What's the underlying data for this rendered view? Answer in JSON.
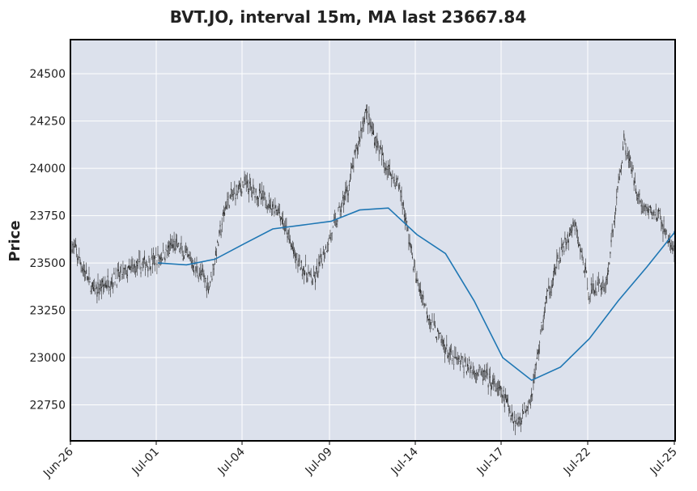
{
  "chart_data": {
    "type": "candlestick",
    "title": "BVT.JO, interval 15m, MA last 23667.84",
    "xlabel": "",
    "ylabel": "Price",
    "ylim": [
      22560,
      24680
    ],
    "y_ticks": [
      22750,
      23000,
      23250,
      23500,
      23750,
      24000,
      24250,
      24500
    ],
    "x_ticks": [
      "Jun-26",
      "Jul-01",
      "Jul-04",
      "Jul-09",
      "Jul-14",
      "Jul-17",
      "Jul-22",
      "Jul-25"
    ],
    "grid": true,
    "background": "#dce1ec",
    "candle_color": "#2b2b2b",
    "ma_color": "#1f77b4",
    "ma_last": 23667.84,
    "price_path": [
      [
        "Jun-26",
        23600
      ],
      [
        "Jun-26",
        23350
      ],
      [
        "Jun-26",
        23420
      ],
      [
        "Jun-26",
        23480
      ],
      [
        "Jul-01",
        23520
      ],
      [
        "Jul-01",
        23600
      ],
      [
        "Jul-01",
        23500
      ],
      [
        "Jul-01",
        23380
      ],
      [
        "Jul-01",
        23820
      ],
      [
        "Jul-04",
        23920
      ],
      [
        "Jul-04",
        23850
      ],
      [
        "Jul-04",
        23780
      ],
      [
        "Jul-04",
        23520
      ],
      [
        "Jul-04",
        23400
      ],
      [
        "Jul-09",
        23650
      ],
      [
        "Jul-09",
        23900
      ],
      [
        "Jul-09",
        24300
      ],
      [
        "Jul-09",
        24050
      ],
      [
        "Jul-09",
        23900
      ],
      [
        "Jul-14",
        23400
      ],
      [
        "Jul-14",
        23150
      ],
      [
        "Jul-14",
        23000
      ],
      [
        "Jul-14",
        22950
      ],
      [
        "Jul-14",
        22900
      ],
      [
        "Jul-17",
        22800
      ],
      [
        "Jul-17",
        22650
      ],
      [
        "Jul-17",
        22800
      ],
      [
        "Jul-17",
        23300
      ],
      [
        "Jul-17",
        23550
      ],
      [
        "Jul-17",
        23700
      ],
      [
        "Jul-22",
        23350
      ],
      [
        "Jul-22",
        23400
      ],
      [
        "Jul-22",
        24150
      ],
      [
        "Jul-22",
        23800
      ],
      [
        "Jul-22",
        23750
      ],
      [
        "Jul-25",
        23550
      ],
      [
        "Jul-25",
        23350
      ]
    ],
    "moving_average": [
      [
        "Jul-01",
        23500
      ],
      [
        "Jul-01",
        23490
      ],
      [
        "Jul-01",
        23520
      ],
      [
        "Jul-04",
        23600
      ],
      [
        "Jul-04",
        23680
      ],
      [
        "Jul-04",
        23700
      ],
      [
        "Jul-09",
        23720
      ],
      [
        "Jul-09",
        23780
      ],
      [
        "Jul-09",
        23790
      ],
      [
        "Jul-14",
        23650
      ],
      [
        "Jul-14",
        23550
      ],
      [
        "Jul-14",
        23300
      ],
      [
        "Jul-17",
        23000
      ],
      [
        "Jul-17",
        22880
      ],
      [
        "Jul-17",
        22950
      ],
      [
        "Jul-22",
        23100
      ],
      [
        "Jul-22",
        23300
      ],
      [
        "Jul-22",
        23480
      ],
      [
        "Jul-25",
        23660
      ],
      [
        "Jul-25",
        23650
      ],
      [
        "Jul-25",
        23668
      ]
    ]
  }
}
